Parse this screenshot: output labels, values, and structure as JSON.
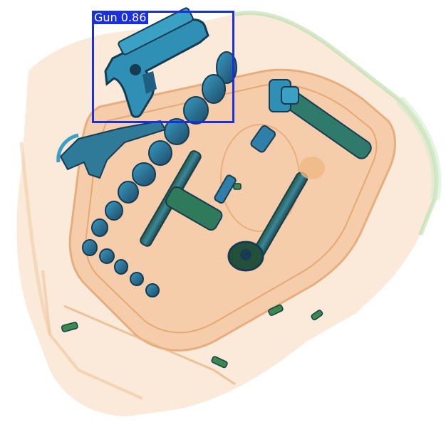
{
  "detections": [
    {
      "label": "Gun 0.86",
      "class": "Gun",
      "confidence": 0.86,
      "box_color": "#1a2fe0"
    }
  ],
  "palette": {
    "organic": "#f1b887",
    "organic_dark": "#e39a5e",
    "metal_blue": "#2f7fa8",
    "metal_dark": "#173b52",
    "metal_green": "#2f6b2d",
    "edge_green": "#9ccf8e"
  }
}
